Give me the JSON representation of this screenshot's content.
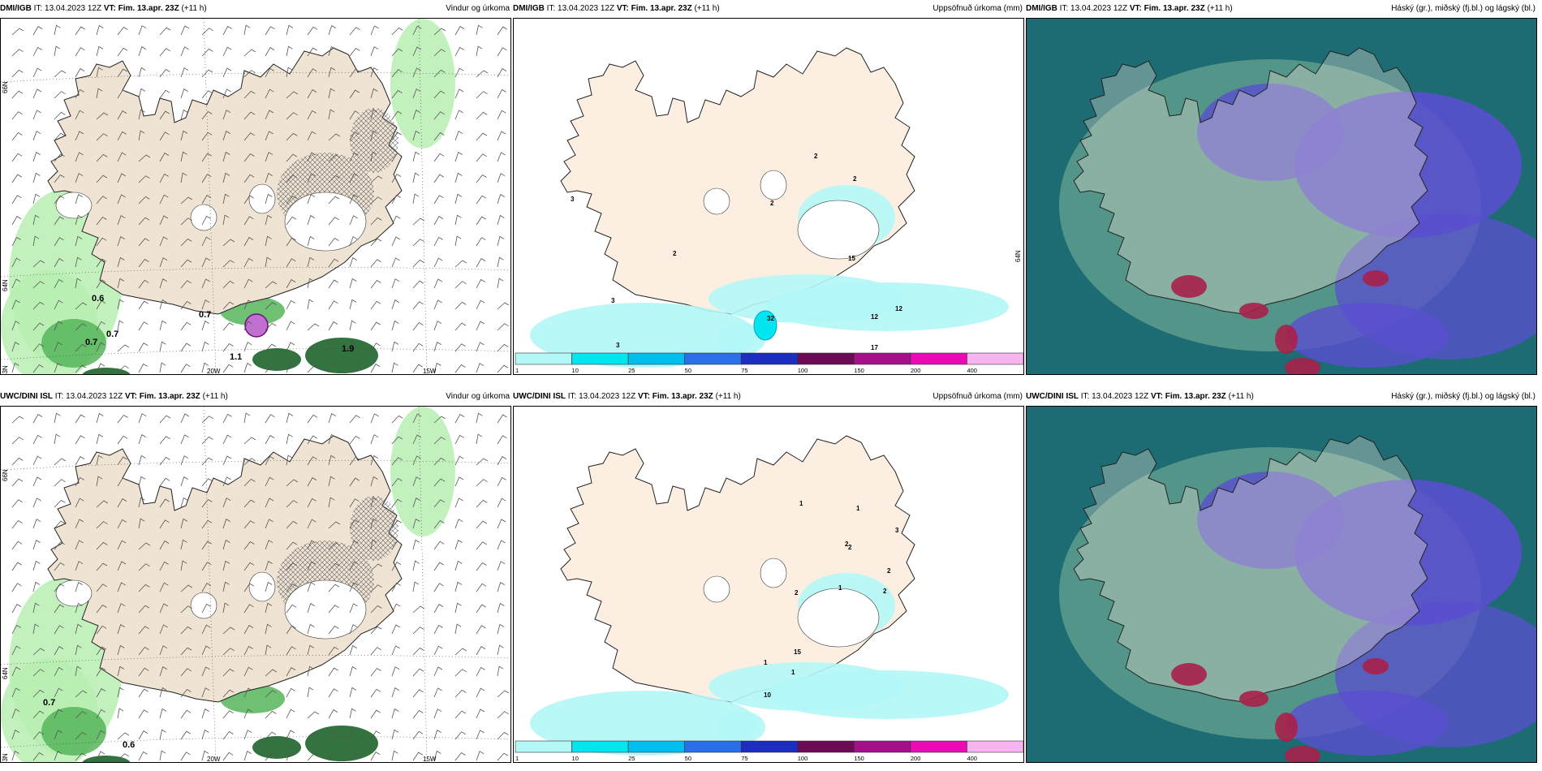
{
  "panels": [
    {
      "source": "DMI/IGB",
      "it_label": "IT:",
      "it": "13.04.2023 12Z",
      "vt_label": "VT:",
      "vt": "Fim. 13.apr. 23Z",
      "lead": "(+11 h)",
      "title": "Vindur og úrkoma",
      "type": "wind",
      "labels": [
        "0.6",
        "0.7",
        "0.7",
        "0.7",
        "1.1",
        "1.9"
      ],
      "axis": {
        "lat_top": "66N",
        "lat_mid": "64N",
        "lat_bot": "63N",
        "lon_a": "20W",
        "lon_b": "15W"
      }
    },
    {
      "source": "DMI/IGB",
      "it_label": "IT:",
      "it": "13.04.2023 12Z",
      "vt_label": "VT:",
      "vt": "Fim. 13.apr. 23Z",
      "lead": "(+11 h)",
      "title": "Uppsöfnuð úrkoma (mm)",
      "type": "accum",
      "labels": [
        "2",
        "3",
        "2",
        "2",
        "2",
        "3",
        "3",
        "12",
        "32",
        "12",
        "17",
        "15"
      ],
      "axis": {
        "lat_mid": "64N"
      }
    },
    {
      "source": "DMI/IGB",
      "it_label": "IT:",
      "it": "13.04.2023 12Z",
      "vt_label": "VT:",
      "vt": "Fim. 13.apr. 23Z",
      "lead": "(+11 h)",
      "title": "Háský (gr.), miðský (fj.bl.) og lágský (bl.)",
      "type": "cloud"
    },
    {
      "source": "UWC/DINI ISL",
      "it_label": "IT:",
      "it": "13.04.2023 12Z",
      "vt_label": "VT:",
      "vt": "Fim. 13.apr. 23Z",
      "lead": "(+11 h)",
      "title": "Vindur og úrkoma",
      "type": "wind",
      "labels": [
        "0.7",
        "0.6"
      ],
      "axis": {
        "lat_top": "66N",
        "lat_mid": "64N",
        "lat_bot": "63N",
        "lon_a": "20W",
        "lon_b": "15W"
      }
    },
    {
      "source": "UWC/DINI ISL",
      "it_label": "IT:",
      "it": "13.04.2023 12Z",
      "vt_label": "VT:",
      "vt": "Fim. 13.apr. 23Z",
      "lead": "(+11 h)",
      "title": "Uppsöfnuð úrkoma (mm)",
      "type": "accum",
      "labels": [
        "1",
        "1",
        "3",
        "2",
        "2",
        "2",
        "2",
        "2",
        "1",
        "1",
        "1",
        "15",
        "10"
      ],
      "axis": {}
    },
    {
      "source": "UWC/DINI ISL",
      "it_label": "IT:",
      "it": "13.04.2023 12Z",
      "vt_label": "VT:",
      "vt": "Fim. 13.apr. 23Z",
      "lead": "(+11 h)",
      "title": "Háský (gr.), miðský (fj.bl.) og lágský (bl.)",
      "type": "cloud"
    }
  ],
  "colorbar": {
    "ticks": [
      "1",
      "10",
      "25",
      "50",
      "75",
      "100",
      "150",
      "200",
      "400"
    ],
    "colors": [
      "#b3f7f7",
      "#00e5ee",
      "#00bfef",
      "#2a6fe8",
      "#1c2dbf",
      "#6b0a55",
      "#a3108a",
      "#ea0bb4",
      "#f7b4ef"
    ]
  },
  "colors": {
    "land": "#efe3d3",
    "land_accum": "#fcefe2",
    "sea_cloud": "#1d6b73",
    "cloud_high": "#5e9c8d",
    "cloud_mid": "#5a4fcf",
    "cloud_low": "#a8204a",
    "precip_light": "#b9efb3",
    "precip_mid": "#56b55a",
    "precip_dark": "#0f5a1e",
    "accum_light": "#b3f7f7"
  }
}
